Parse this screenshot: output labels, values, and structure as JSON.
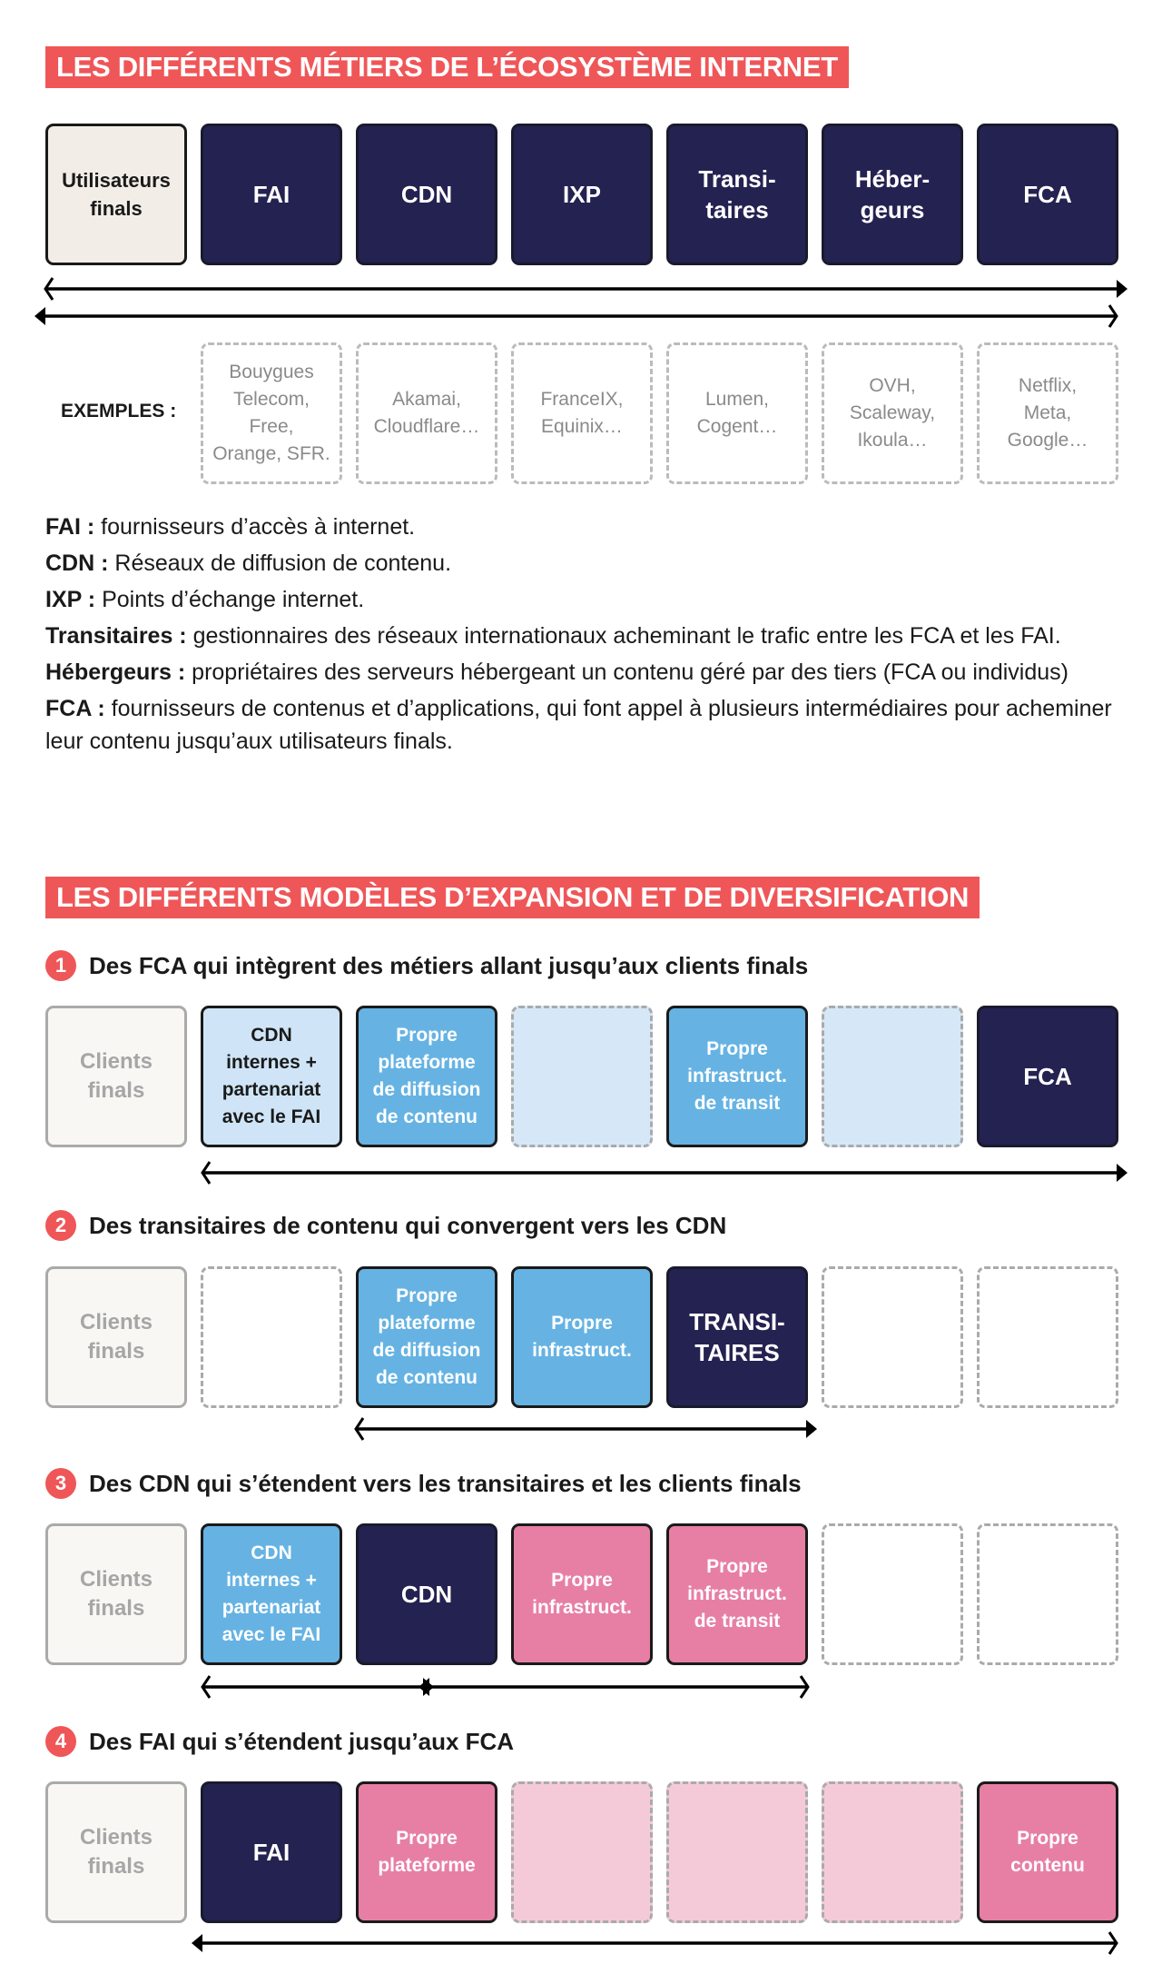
{
  "colors": {
    "navy": "#242251",
    "red": "#ef5658",
    "light_blue": "#cfe5f7",
    "blue": "#66b3e3",
    "pink": "#e77fa4",
    "light_pink": "#f4cad9",
    "beige": "#f2ede6",
    "gray": "#aaaaaa"
  },
  "section1": {
    "title": "LES DIFFÉRENTS MÉTIERS DE L’ÉCOSYSTÈME INTERNET",
    "actors": [
      {
        "label": "Utilisateurs\nfinals",
        "style": "beige"
      },
      {
        "label": "FAI",
        "style": "navy"
      },
      {
        "label": "CDN",
        "style": "navy"
      },
      {
        "label": "IXP",
        "style": "navy"
      },
      {
        "label": "Transi-\ntaires",
        "style": "navy"
      },
      {
        "label": "Héber-\ngeurs",
        "style": "navy"
      },
      {
        "label": "FCA",
        "style": "navy"
      }
    ],
    "examples_label": "EXEMPLES :",
    "examples": [
      "Bouygues\nTelecom,\nFree,\nOrange, SFR.",
      "Akamai,\nCloudflare…",
      "FranceIX,\nEquinix…",
      "Lumen,\nCogent…",
      "OVH,\nScaleway,\nIkoula…",
      "Netflix,\nMeta,\nGoogle…"
    ],
    "definitions": [
      {
        "term": "FAI :",
        "text": " fournisseurs d’accès à internet."
      },
      {
        "term": "CDN :",
        "text": " Réseaux de diffusion de contenu."
      },
      {
        "term": "IXP :",
        "text": " Points d’échange internet."
      },
      {
        "term": "Transitaires :",
        "text": " gestionnaires des réseaux internationaux acheminant le trafic entre les FCA et les FAI."
      },
      {
        "term": "Hébergeurs :",
        "text": " propriétaires des serveurs hébergeant un contenu géré par des tiers (FCA ou individus)"
      },
      {
        "term": "FCA :",
        "text": " fournisseurs de contenus et d’applications, qui font appel à plusieurs intermédiaires pour acheminer leur contenu jusqu’aux utilisateurs finals."
      }
    ]
  },
  "section2": {
    "title": "LES DIFFÉRENTS MODÈLES D’EXPANSION ET DE DIVERSIFICATION",
    "models": [
      {
        "number": "1",
        "heading": "Des FCA qui intègrent des métiers allant jusqu’aux clients finals",
        "boxes": [
          {
            "label": "Clients\nfinals",
            "style": "client"
          },
          {
            "label": "CDN\ninternes +\npartenariat\navec le FAI",
            "style": "ltblue"
          },
          {
            "label": "Propre\nplateforme\nde diffusion\nde contenu",
            "style": "blue"
          },
          {
            "label": "",
            "style": "dash-ltblue"
          },
          {
            "label": "Propre\ninfrastruct.\nde transit",
            "style": "blue"
          },
          {
            "label": "",
            "style": "dash-ltblue"
          },
          {
            "label": "FCA",
            "style": "navy"
          }
        ]
      },
      {
        "number": "2",
        "heading": "Des transitaires de contenu qui convergent vers les CDN",
        "boxes": [
          {
            "label": "Clients\nfinals",
            "style": "client"
          },
          {
            "label": "",
            "style": "dash-empty"
          },
          {
            "label": "Propre\nplateforme\nde diffusion\nde contenu",
            "style": "blue"
          },
          {
            "label": "Propre\ninfrastruct.",
            "style": "blue"
          },
          {
            "label": "TRANSI-\nTAIRES",
            "style": "navy"
          },
          {
            "label": "",
            "style": "dash-empty"
          },
          {
            "label": "",
            "style": "dash-empty"
          }
        ]
      },
      {
        "number": "3",
        "heading": "Des CDN qui s’étendent vers les transitaires et les clients finals",
        "boxes": [
          {
            "label": "Clients\nfinals",
            "style": "client"
          },
          {
            "label": "CDN\ninternes +\npartenariat\navec le FAI",
            "style": "blue"
          },
          {
            "label": "CDN",
            "style": "navy"
          },
          {
            "label": "Propre\ninfrastruct.",
            "style": "pink"
          },
          {
            "label": "Propre\ninfrastruct.\nde transit",
            "style": "pink"
          },
          {
            "label": "",
            "style": "dash-empty"
          },
          {
            "label": "",
            "style": "dash-empty"
          }
        ]
      },
      {
        "number": "4",
        "heading": "Des FAI qui s’étendent jusqu’aux FCA",
        "boxes": [
          {
            "label": "Clients\nfinals",
            "style": "client"
          },
          {
            "label": "FAI",
            "style": "navy"
          },
          {
            "label": "Propre\nplateforme",
            "style": "pink"
          },
          {
            "label": "",
            "style": "dash-ltpink"
          },
          {
            "label": "",
            "style": "dash-ltpink"
          },
          {
            "label": "",
            "style": "dash-ltpink"
          },
          {
            "label": "Propre\ncontenu",
            "style": "pink"
          }
        ]
      }
    ]
  }
}
